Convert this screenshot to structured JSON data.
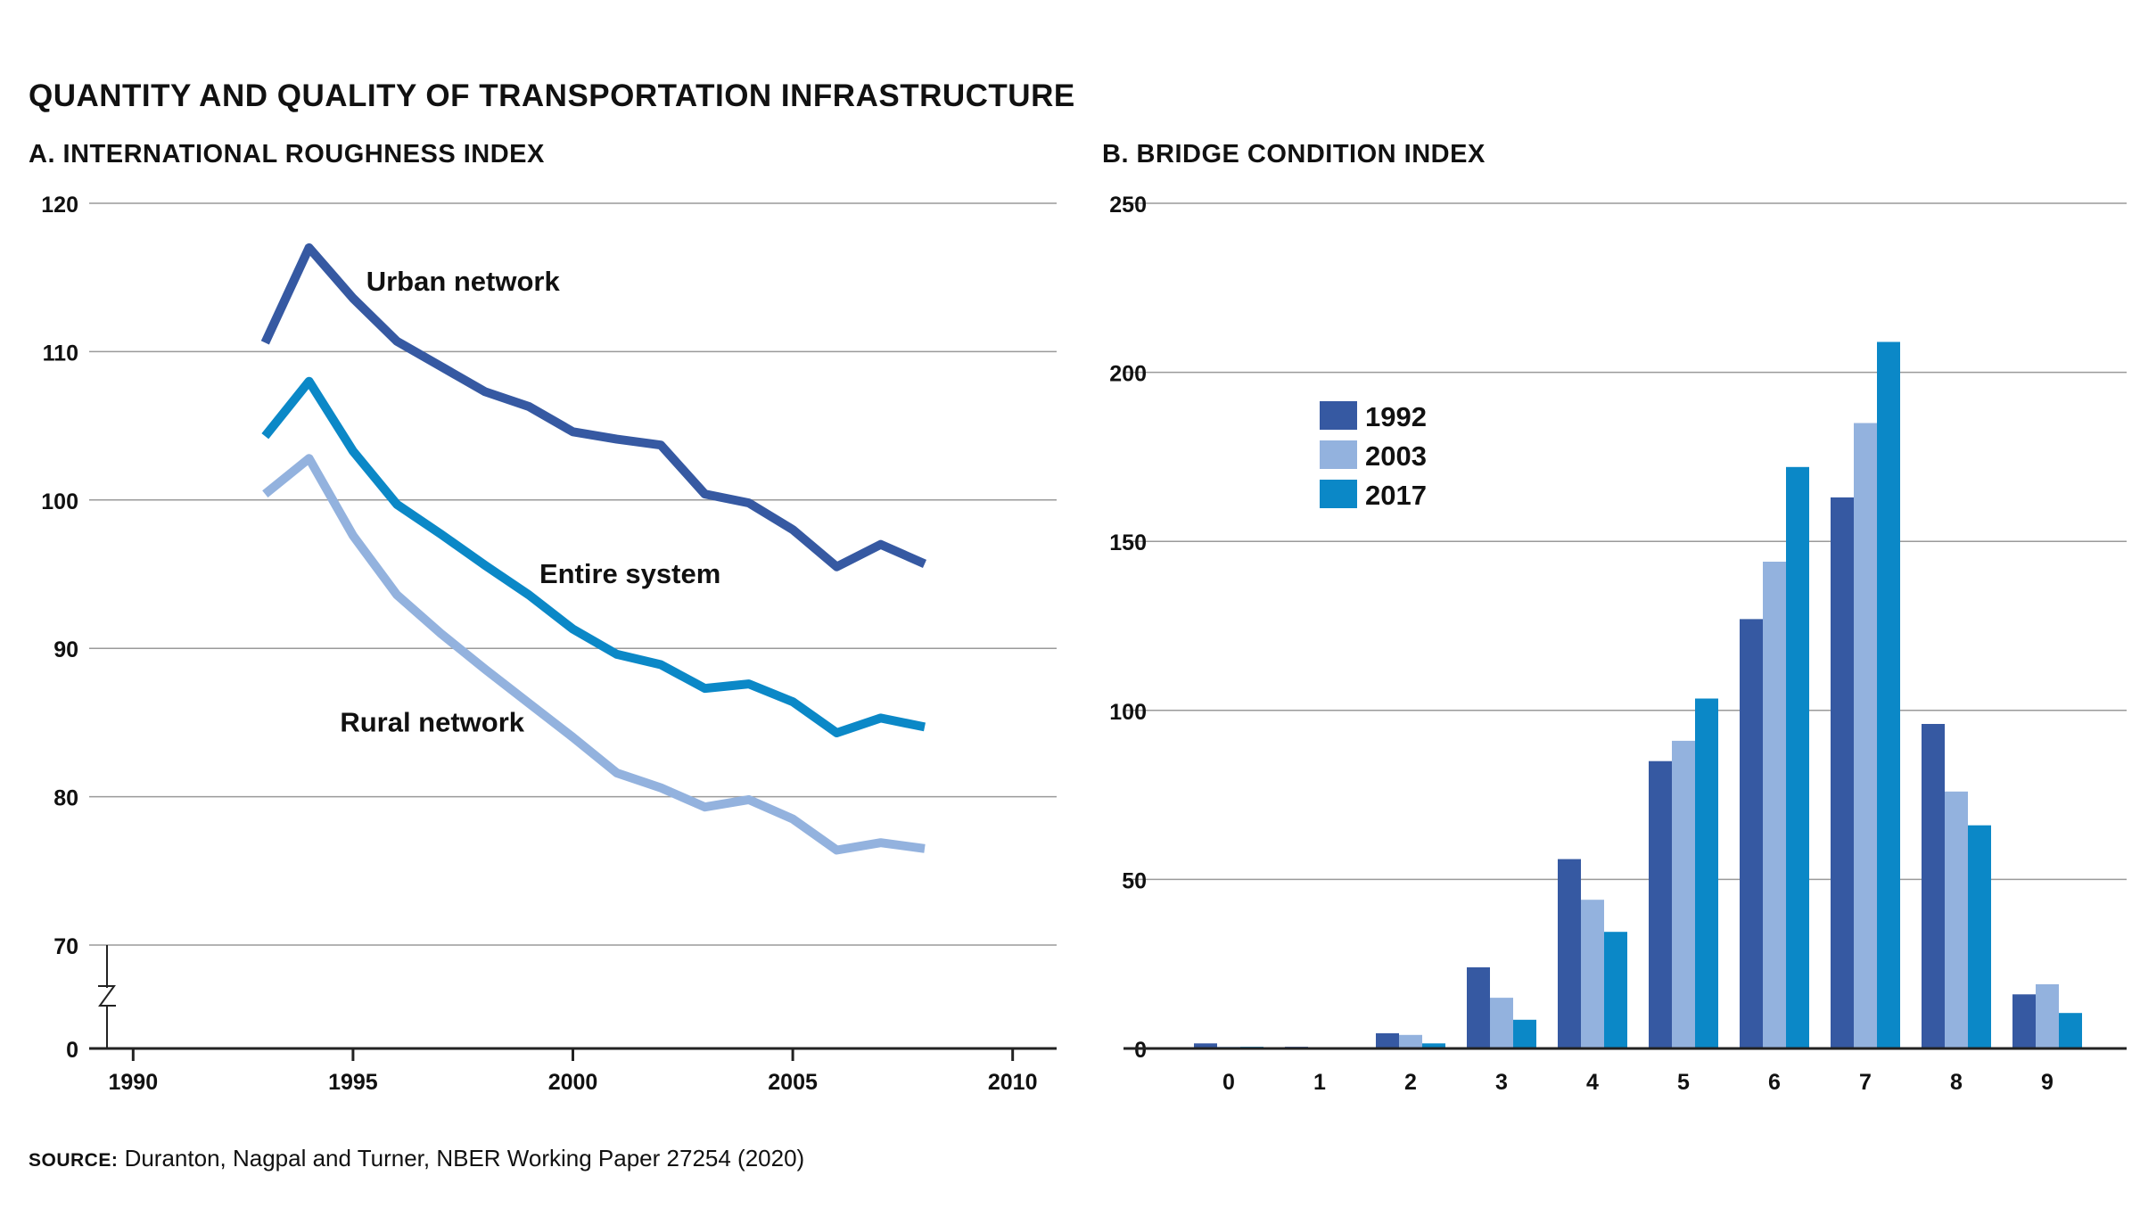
{
  "figure": {
    "title": "QUANTITY AND QUALITY OF TRANSPORTATION INFRASTRUCTURE",
    "source_label": "SOURCE:",
    "source_text": " Duranton, Nagpal and Turner, NBER Working Paper 27254 (2020)"
  },
  "colors": {
    "dark_blue": "#3659a2",
    "light_blue": "#93b2de",
    "medium_blue": "#0b88c7",
    "grid": "#9a9a9a",
    "axis": "#222222"
  },
  "chart_data": [
    {
      "type": "line",
      "title": "A. INTERNATIONAL ROUGHNESS INDEX",
      "xlabel": "",
      "ylabel": "",
      "xlim": [
        1989,
        2011
      ],
      "ylim": [
        70,
        120
      ],
      "axis_break": true,
      "y_floor_label": "0",
      "xticks": [
        1990,
        1995,
        2000,
        2005,
        2010
      ],
      "yticks": [
        70,
        80,
        90,
        100,
        110,
        120
      ],
      "grid": true,
      "x": [
        1993,
        1994,
        1995,
        1996,
        1997,
        1998,
        1999,
        2000,
        2001,
        2002,
        2003,
        2004,
        2005,
        2006,
        2007,
        2008
      ],
      "series": [
        {
          "name": "Urban network",
          "color": "#3659a2",
          "label_pos": [
            1997.5,
            114.7
          ],
          "values": [
            110.6,
            117.0,
            113.6,
            110.7,
            109.0,
            107.3,
            106.3,
            104.6,
            104.1,
            103.7,
            100.4,
            99.8,
            98.0,
            95.5,
            97.0,
            95.7
          ]
        },
        {
          "name": "Entire system",
          "color": "#0b88c7",
          "label_pos": [
            2001.3,
            95.0
          ],
          "values": [
            104.3,
            108.0,
            103.3,
            99.7,
            97.7,
            95.6,
            93.6,
            91.3,
            89.6,
            88.9,
            87.3,
            87.6,
            86.4,
            84.3,
            85.3,
            84.7
          ]
        },
        {
          "name": "Rural network",
          "color": "#93b2de",
          "label_pos": [
            1996.8,
            85.0
          ],
          "values": [
            100.4,
            102.8,
            97.6,
            93.6,
            91.0,
            88.6,
            86.3,
            84.0,
            81.6,
            80.6,
            79.3,
            79.8,
            78.5,
            76.4,
            76.9,
            76.5
          ]
        }
      ]
    },
    {
      "type": "bar",
      "title": "B. BRIDGE CONDITION INDEX",
      "xlabel": "",
      "ylabel": "",
      "ylim": [
        0,
        250
      ],
      "yticks": [
        0,
        50,
        100,
        150,
        200,
        250
      ],
      "grid": true,
      "legend": "upper-left",
      "categories": [
        "0",
        "1",
        "2",
        "3",
        "4",
        "5",
        "6",
        "7",
        "8",
        "9"
      ],
      "series": [
        {
          "name": "1992",
          "color": "#3659a2",
          "values": [
            1.5,
            0.5,
            4.5,
            24,
            56,
            85,
            127,
            163,
            96,
            16
          ]
        },
        {
          "name": "2003",
          "color": "#93b2de",
          "values": [
            0.5,
            0.3,
            4,
            15,
            44,
            91,
            144,
            185,
            76,
            19
          ]
        },
        {
          "name": "2017",
          "color": "#0b88c7",
          "values": [
            0.5,
            0.2,
            1.5,
            8.5,
            34.5,
            103.5,
            172,
            209,
            66,
            10.5
          ]
        }
      ]
    }
  ]
}
